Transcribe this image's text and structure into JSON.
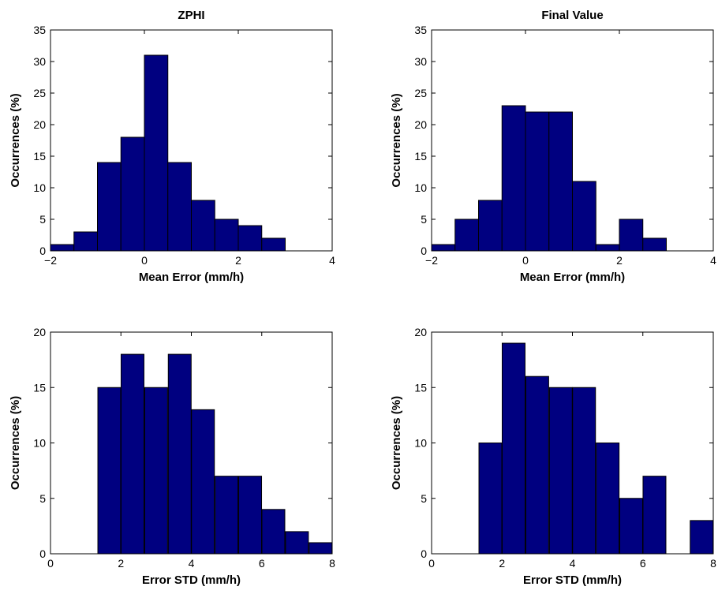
{
  "chart_data": [
    {
      "type": "bar",
      "title": "ZPHI",
      "xlabel": "Mean Error (mm/h)",
      "ylabel": "Occurrences (%)",
      "xlim": [
        -2,
        4
      ],
      "ylim": [
        0,
        35
      ],
      "xticks": [
        -2,
        0,
        2,
        4
      ],
      "yticks": [
        0,
        5,
        10,
        15,
        20,
        25,
        30,
        35
      ],
      "bar_width": 0.5,
      "x": [
        -1.75,
        -1.25,
        -0.75,
        -0.25,
        0.25,
        0.75,
        1.25,
        1.75,
        2.25,
        2.75,
        3.25,
        3.75
      ],
      "values": [
        1,
        3,
        14,
        18,
        31,
        14,
        8,
        5,
        4,
        2,
        0,
        0
      ],
      "color": "#000080",
      "grid": false
    },
    {
      "type": "bar",
      "title": "Final Value",
      "xlabel": "Mean Error (mm/h)",
      "ylabel": "Occurrences (%)",
      "xlim": [
        -2,
        4
      ],
      "ylim": [
        0,
        35
      ],
      "xticks": [
        -2,
        0,
        2,
        4
      ],
      "yticks": [
        0,
        5,
        10,
        15,
        20,
        25,
        30,
        35
      ],
      "bar_width": 0.5,
      "x": [
        -1.75,
        -1.25,
        -0.75,
        -0.25,
        0.25,
        0.75,
        1.25,
        1.75,
        2.25,
        2.75,
        3.25,
        3.75
      ],
      "values": [
        1,
        5,
        8,
        23,
        22,
        22,
        11,
        1,
        5,
        2,
        0,
        0
      ],
      "color": "#000080",
      "grid": false
    },
    {
      "type": "bar",
      "title": "",
      "xlabel": "Error STD (mm/h)",
      "ylabel": "Occurrences (%)",
      "xlim": [
        0,
        8
      ],
      "ylim": [
        0,
        20
      ],
      "xticks": [
        0,
        2,
        4,
        6,
        8
      ],
      "yticks": [
        0,
        5,
        10,
        15,
        20
      ],
      "bar_width": 0.65,
      "x": [
        0.33,
        1.0,
        1.67,
        2.33,
        3.0,
        3.67,
        4.33,
        5.0,
        5.67,
        6.33,
        7.0,
        7.67
      ],
      "values": [
        0,
        0,
        15,
        18,
        15,
        18,
        13,
        7,
        7,
        4,
        2,
        1
      ],
      "color": "#000080",
      "grid": false
    },
    {
      "type": "bar",
      "title": "",
      "xlabel": "Error STD (mm/h)",
      "ylabel": "Occurrences (%)",
      "xlim": [
        0,
        8
      ],
      "ylim": [
        0,
        20
      ],
      "xticks": [
        0,
        2,
        4,
        6,
        8
      ],
      "yticks": [
        0,
        5,
        10,
        15,
        20
      ],
      "bar_width": 0.65,
      "x": [
        1.0,
        1.67,
        2.33,
        3.0,
        3.67,
        4.33,
        5.0,
        5.67,
        6.33,
        7.0,
        7.67
      ],
      "values": [
        0,
        10,
        19,
        16,
        15,
        15,
        10,
        5,
        7,
        0,
        3
      ],
      "color": "#000080",
      "grid": false
    }
  ]
}
